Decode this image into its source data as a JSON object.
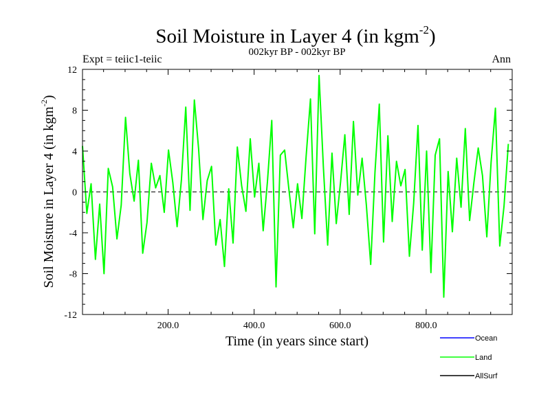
{
  "chart_data": {
    "type": "line",
    "title": "Soil Moisture in Layer 4 (in kgm",
    "title_sup": "-2",
    "title_close": ")",
    "subtitle": "002kyr BP - 002kyr BP",
    "expt_label": "Expt = teiic1-teiic",
    "season_label": "Ann",
    "xlabel": "Time (in years since start)",
    "ylabel": "Soil Moisture in Layer 4 (in kgm",
    "ylabel_sup": "-2",
    "ylabel_close": ")",
    "xlim": [
      1,
      1000
    ],
    "ylim": [
      -12,
      12
    ],
    "xticks": [
      200,
      400,
      600,
      800
    ],
    "xtick_labels": [
      "200.0",
      "400.0",
      "600.0",
      "800.0"
    ],
    "yticks": [
      -12,
      -8,
      -4,
      0,
      4,
      8,
      12
    ],
    "ytick_labels": [
      "-12",
      "-8",
      "-4",
      "0",
      "4",
      "8",
      "12"
    ],
    "zero_line": true,
    "legend_position": "bottom-right",
    "series": [
      {
        "name": "Ocean",
        "color": "#0000ff",
        "x": [],
        "y": []
      },
      {
        "name": "Land",
        "color": "#00ff00",
        "x_start": 1,
        "x_step": 10,
        "y": [
          4.5,
          -2.1,
          0.8,
          -6.6,
          -1.2,
          -8.0,
          2.3,
          0.5,
          -4.6,
          -1.3,
          7.3,
          1.8,
          -0.9,
          3.1,
          -6.0,
          -3.0,
          2.8,
          0.4,
          1.6,
          -2.0,
          4.1,
          0.9,
          -3.4,
          1.2,
          8.3,
          -1.8,
          9.0,
          4.2,
          -2.7,
          1.1,
          2.5,
          -5.2,
          -2.7,
          -7.3,
          0.3,
          -5.0,
          4.4,
          0.6,
          -1.9,
          5.2,
          -0.5,
          2.8,
          -3.8,
          1.0,
          7.0,
          -9.3,
          3.6,
          4.1,
          0.2,
          -3.5,
          0.8,
          -2.6,
          3.5,
          9.1,
          -4.1,
          11.4,
          2.4,
          -5.2,
          3.8,
          -3.1,
          1.0,
          5.6,
          -2.2,
          6.9,
          -0.3,
          3.3,
          -1.3,
          -7.1,
          1.9,
          8.6,
          -4.9,
          5.5,
          -2.9,
          3.0,
          0.6,
          2.2,
          -6.3,
          -1.1,
          6.5,
          -5.7,
          4.0,
          -7.9,
          3.6,
          5.2,
          -10.3,
          2.0,
          -3.9,
          3.3,
          -1.5,
          6.2,
          -2.8,
          0.9,
          4.3,
          1.6,
          -4.4,
          2.9,
          8.2,
          -5.3,
          -1.4,
          4.7
        ]
      },
      {
        "name": "AllSurf",
        "color": "#000000",
        "x": [],
        "y": []
      }
    ]
  }
}
